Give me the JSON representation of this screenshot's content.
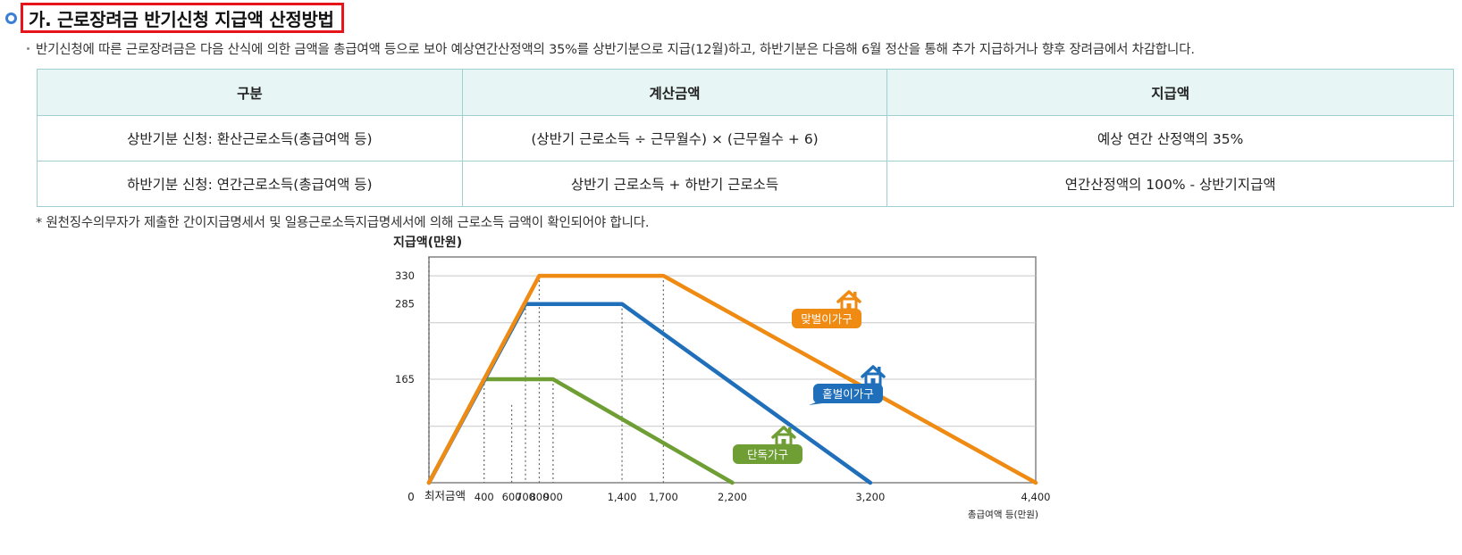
{
  "heading": "가. 근로장려금 반기신청 지급액 산정방법",
  "description": "반기신청에 따른 근로장려금은 다음 산식에 의한 금액을 총급여액 등으로 보아 예상연간산정액의 35%를 상반기분으로 지급(12월)하고, 하반기분은 다음해 6월 정산을 통해 추가 지급하거나 향후 장려금에서 차감합니다.",
  "table": {
    "headers": [
      "구분",
      "계산금액",
      "지급액"
    ],
    "rows": [
      [
        "상반기분 신청: 환산근로소득(총급여액 등)",
        "(상반기 근로소득 ÷ 근무월수) × (근무월수 + 6)",
        "예상 연간 산정액의 35%"
      ],
      [
        "하반기분 신청: 연간근로소득(총급여액 등)",
        "상반기 근로소득 + 하반기 근로소득",
        "연간산정액의 100% - 상반기지급액"
      ]
    ]
  },
  "note": "* 원천징수의무자가 제출한 간이지급명세서 및 일용근로소득지급명세서에 의해 근로소득 금액이 확인되어야 합니다.",
  "chart_data": {
    "type": "line",
    "ylabel": "지급액(만원)",
    "xlabel": "총급여액 등(만원)",
    "y_ticks": [
      "330",
      "285",
      "165"
    ],
    "origin_label": "0",
    "min_label": "최저금액",
    "x_ticks": [
      "400",
      "600",
      "700",
      "800",
      "900",
      "1,400",
      "1,700",
      "2,200",
      "3,200",
      "4,400"
    ],
    "series": [
      {
        "name": "맞벌이가구",
        "color": "#ef8a12",
        "points": [
          [
            0,
            0
          ],
          [
            800,
            330
          ],
          [
            1700,
            330
          ],
          [
            4400,
            0
          ]
        ]
      },
      {
        "name": "홑벌이가구",
        "color": "#1f6fba",
        "points": [
          [
            0,
            0
          ],
          [
            700,
            285
          ],
          [
            1400,
            285
          ],
          [
            3200,
            0
          ]
        ]
      },
      {
        "name": "단독가구",
        "color": "#6f9e34",
        "points": [
          [
            0,
            0
          ],
          [
            400,
            165
          ],
          [
            900,
            165
          ],
          [
            2200,
            0
          ]
        ]
      }
    ]
  }
}
